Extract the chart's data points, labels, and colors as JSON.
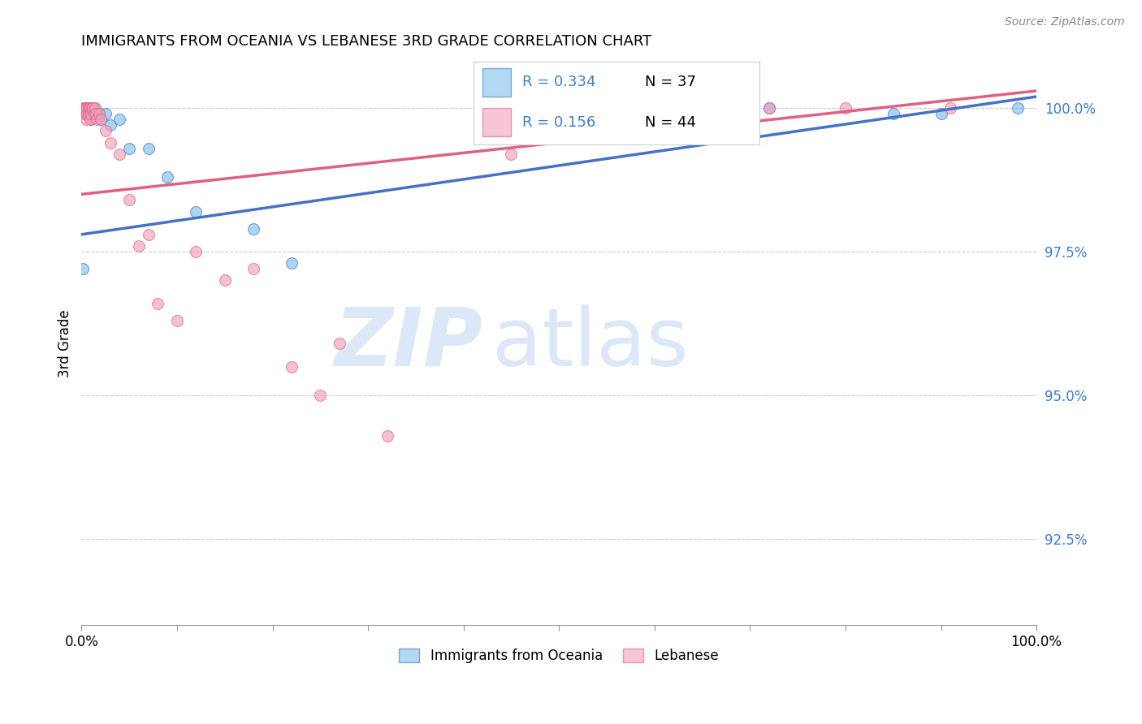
{
  "title": "IMMIGRANTS FROM OCEANIA VS LEBANESE 3RD GRADE CORRELATION CHART",
  "source": "Source: ZipAtlas.com",
  "ylabel": "3rd Grade",
  "ytick_labels": [
    "92.5%",
    "95.0%",
    "97.5%",
    "100.0%"
  ],
  "ytick_values": [
    0.925,
    0.95,
    0.975,
    1.0
  ],
  "xlim": [
    0.0,
    1.0
  ],
  "ylim": [
    0.91,
    1.008
  ],
  "legend_blue_label": "Immigrants from Oceania",
  "legend_pink_label": "Lebanese",
  "legend_R_blue": "R = 0.334",
  "legend_N_blue": "N = 37",
  "legend_R_pink": "R = 0.156",
  "legend_N_pink": "N = 44",
  "blue_color": "#7fbfea",
  "pink_color": "#f0a0b8",
  "blue_line_color": "#4472c4",
  "pink_line_color": "#e06080",
  "watermark_zip": "ZIP",
  "watermark_atlas": "atlas",
  "watermark_color": "#dce8f8",
  "blue_x": [
    0.001,
    0.002,
    0.003,
    0.004,
    0.004,
    0.005,
    0.006,
    0.006,
    0.007,
    0.007,
    0.008,
    0.009,
    0.009,
    0.01,
    0.01,
    0.011,
    0.012,
    0.012,
    0.013,
    0.015,
    0.016,
    0.018,
    0.02,
    0.025,
    0.03,
    0.04,
    0.05,
    0.07,
    0.09,
    0.12,
    0.18,
    0.22,
    0.6,
    0.72,
    0.85,
    0.9,
    0.98
  ],
  "blue_y": [
    0.972,
    0.999,
    1.0,
    1.0,
    1.0,
    1.0,
    1.0,
    1.0,
    1.0,
    0.999,
    1.0,
    1.0,
    0.999,
    1.0,
    0.998,
    1.0,
    1.0,
    0.999,
    1.0,
    0.999,
    0.999,
    0.999,
    0.998,
    0.999,
    0.997,
    0.998,
    0.993,
    0.993,
    0.988,
    0.982,
    0.979,
    0.973,
    1.0,
    1.0,
    0.999,
    0.999,
    1.0
  ],
  "pink_x": [
    0.001,
    0.002,
    0.003,
    0.003,
    0.004,
    0.005,
    0.005,
    0.006,
    0.006,
    0.007,
    0.007,
    0.008,
    0.009,
    0.009,
    0.01,
    0.011,
    0.012,
    0.013,
    0.014,
    0.015,
    0.016,
    0.018,
    0.02,
    0.025,
    0.03,
    0.04,
    0.05,
    0.06,
    0.07,
    0.08,
    0.1,
    0.12,
    0.15,
    0.18,
    0.22,
    0.25,
    0.27,
    0.32,
    0.45,
    0.55,
    0.65,
    0.72,
    0.8,
    0.91
  ],
  "pink_y": [
    0.999,
    1.0,
    1.0,
    0.999,
    1.0,
    1.0,
    0.998,
    1.0,
    0.999,
    1.0,
    0.999,
    1.0,
    0.998,
    1.0,
    0.999,
    1.0,
    1.0,
    0.999,
    1.0,
    0.999,
    0.998,
    0.999,
    0.998,
    0.996,
    0.994,
    0.992,
    0.984,
    0.976,
    0.978,
    0.966,
    0.963,
    0.975,
    0.97,
    0.972,
    0.955,
    0.95,
    0.959,
    0.943,
    0.992,
    0.998,
    1.0,
    1.0,
    1.0,
    1.0
  ]
}
